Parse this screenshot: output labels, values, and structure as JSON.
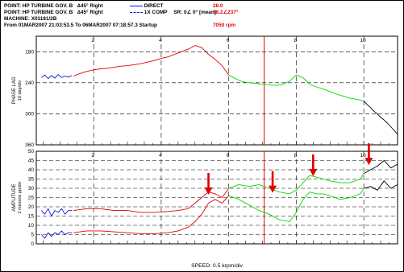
{
  "header": {
    "line1_point": "POINT: HP TURBINE GOV. B",
    "line1_angle": "∆45° Right",
    "line1_legend": "DIRECT",
    "line1_value": "28.0",
    "line2_point": "POINT: HP TURBINE GOV. B",
    "line2_angle": "∆45° Right",
    "line2_legend": "1X COMP",
    "line2_sr": "SR: 0∠ 0° [mean]",
    "line2_value": "28.2∠237°",
    "line3_machine": "MACHINE: X01181/2B",
    "line4_range": "From 01MAR2007 21:03:53.5 To 06MAR2007 07:18:57.3 Startup",
    "line4_rpm": "7050 rpm"
  },
  "colors": {
    "red": "#e00000",
    "green": "#00dd00",
    "blue": "#1010e0",
    "black": "#000000"
  },
  "chart_data": [
    {
      "type": "line",
      "panel": "phase",
      "ylabel_line1": "PHASE LAG",
      "ylabel_line2": "10 deg/div",
      "ylim": [
        360,
        150
      ],
      "y_inverted": true,
      "yticks": [
        "180",
        "240",
        "300",
        "360"
      ],
      "xlim": [
        0.3,
        11.0
      ],
      "xticks": [
        "2",
        "4",
        "6",
        "8",
        "10"
      ],
      "grid": true,
      "marker_x": 7.05,
      "series": [
        {
          "color": "blue",
          "x": [
            0.45,
            0.55,
            0.65,
            0.75,
            0.85,
            0.95,
            1.05,
            1.15,
            1.25,
            1.35
          ],
          "y": [
            230,
            225,
            232,
            226,
            231,
            224,
            230,
            227,
            229,
            226
          ]
        },
        {
          "color": "red",
          "x": [
            1.4,
            1.6,
            1.8,
            2.0,
            2.2,
            2.4,
            2.6,
            2.8,
            3.0,
            3.2,
            3.4,
            3.6,
            3.8,
            4.0,
            4.2,
            4.4,
            4.6,
            4.8,
            5.0,
            5.2,
            5.4,
            5.6,
            5.8,
            6.0
          ],
          "y": [
            227,
            222,
            218,
            215,
            213,
            212,
            210,
            208,
            207,
            205,
            203,
            200,
            197,
            193,
            190,
            185,
            180,
            175,
            168,
            172,
            185,
            195,
            207,
            225
          ]
        },
        {
          "color": "green",
          "x": [
            6.0,
            6.2,
            6.4,
            6.6,
            6.8,
            7.0,
            7.2,
            7.4,
            7.6,
            7.8,
            8.0,
            8.2,
            8.4,
            8.6,
            8.8,
            9.0,
            9.2,
            9.4,
            9.6,
            9.8,
            10.0
          ],
          "y": [
            225,
            232,
            238,
            240,
            241,
            243,
            244,
            245,
            243,
            237,
            225,
            230,
            243,
            248,
            252,
            257,
            262,
            266,
            270,
            272,
            275
          ]
        },
        {
          "color": "black",
          "x": [
            10.0,
            10.1,
            10.2,
            10.3,
            10.4,
            10.5,
            10.6,
            10.7,
            10.8,
            10.9,
            11.0
          ],
          "y": [
            275,
            282,
            288,
            295,
            300,
            307,
            312,
            318,
            325,
            332,
            340
          ]
        }
      ]
    },
    {
      "type": "line",
      "panel": "amplitude",
      "ylabel_line1": "AMPLITUDE",
      "ylabel_line2": "2 microns pp/div",
      "ylim": [
        0,
        50
      ],
      "yticks": [
        "0",
        "5",
        "10",
        "15",
        "20",
        "25",
        "30",
        "35",
        "40",
        "45",
        "50"
      ],
      "xlim": [
        0.3,
        11.0
      ],
      "xticks": [
        "2",
        "4",
        "6",
        "8",
        "10"
      ],
      "xlabel": "SPEED: 0.5 krpm/div",
      "grid": true,
      "marker_x": 7.05,
      "annotations": [
        {
          "x": 5.4,
          "y": 27
        },
        {
          "x": 7.3,
          "y": 28
        },
        {
          "x": 8.5,
          "y": 37
        },
        {
          "x": 10.15,
          "y": 43
        }
      ],
      "series": [
        {
          "color": "blue",
          "x": [
            0.45,
            0.55,
            0.65,
            0.75,
            0.85,
            0.95,
            1.05,
            1.15,
            1.25,
            1.35
          ],
          "y": [
            18,
            16,
            19,
            15,
            18,
            17,
            19,
            16,
            18,
            18
          ]
        },
        {
          "color": "blue",
          "x": [
            0.45,
            0.55,
            0.65,
            0.75,
            0.85,
            0.95,
            1.05,
            1.15,
            1.25,
            1.35
          ],
          "y": [
            5,
            3,
            6,
            4,
            6,
            5,
            7,
            5,
            6,
            6
          ]
        },
        {
          "color": "red",
          "x": [
            1.4,
            1.8,
            2.2,
            2.6,
            3.0,
            3.4,
            3.8,
            4.2,
            4.5,
            4.8,
            5.0,
            5.2,
            5.4,
            5.6,
            5.8,
            6.0
          ],
          "y": [
            18,
            19,
            19,
            18,
            18,
            17,
            17,
            17.5,
            18,
            19,
            22,
            25,
            28,
            27,
            25,
            30
          ]
        },
        {
          "color": "red",
          "x": [
            1.4,
            1.8,
            2.2,
            2.6,
            3.0,
            3.4,
            3.8,
            4.2,
            4.5,
            4.8,
            5.0,
            5.2,
            5.4,
            5.6,
            5.8,
            6.0
          ],
          "y": [
            6,
            7,
            7,
            6.5,
            6,
            5.5,
            5.5,
            6,
            7,
            9,
            12,
            16,
            22,
            24,
            22,
            26
          ]
        },
        {
          "color": "green",
          "x": [
            6.0,
            6.3,
            6.6,
            6.9,
            7.2,
            7.5,
            7.8,
            8.0,
            8.2,
            8.4,
            8.6,
            8.8,
            9.0,
            9.3,
            9.6,
            9.9,
            10.0
          ],
          "y": [
            30,
            32,
            31,
            32,
            30,
            28,
            27,
            29,
            33,
            37,
            36,
            35,
            34,
            33,
            33,
            35,
            38
          ]
        },
        {
          "color": "green",
          "x": [
            6.0,
            6.3,
            6.6,
            6.9,
            7.2,
            7.5,
            7.8,
            8.0,
            8.2,
            8.4,
            8.6,
            8.8,
            9.0,
            9.3,
            9.6,
            9.9,
            10.0
          ],
          "y": [
            26,
            24,
            21,
            18,
            16,
            13,
            12,
            17,
            24,
            28,
            27,
            27,
            26,
            24,
            25,
            27,
            30
          ]
        },
        {
          "color": "black",
          "x": [
            10.0,
            10.2,
            10.4,
            10.6,
            10.8,
            11.0
          ],
          "y": [
            38,
            40,
            42,
            45,
            41,
            43
          ]
        },
        {
          "color": "black",
          "x": [
            10.0,
            10.2,
            10.4,
            10.6,
            10.8,
            11.0
          ],
          "y": [
            30,
            31,
            29,
            34,
            30,
            32
          ]
        }
      ]
    }
  ]
}
